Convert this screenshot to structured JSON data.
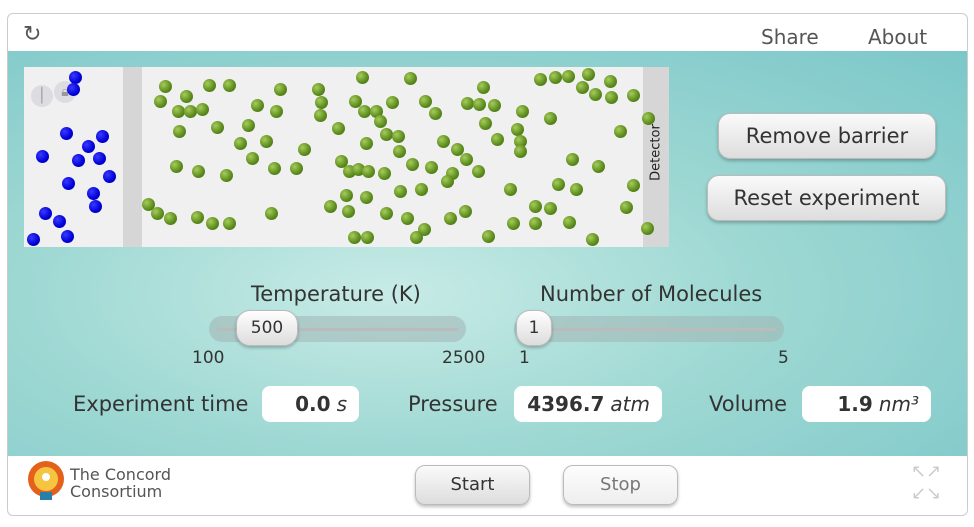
{
  "topbar": {
    "reload_icon": "reload-icon",
    "share": "Share",
    "about": "About"
  },
  "simulation": {
    "detector_label": "Detector",
    "colors": {
      "gas_a": "#0000d8",
      "gas_b": "#5a8a1c"
    }
  },
  "buttons": {
    "remove_barrier": "Remove barrier",
    "reset": "Reset experiment",
    "start": "Start",
    "stop": "Stop"
  },
  "temperature": {
    "label": "Temperature (K)",
    "value": "500",
    "min": "100",
    "max": "2500"
  },
  "molecules": {
    "label": "Number of Molecules",
    "value": "1",
    "min": "1",
    "max": "5"
  },
  "outputs": {
    "time": {
      "label": "Experiment time",
      "value": "0.0",
      "unit": "s"
    },
    "pressure": {
      "label": "Pressure",
      "value": "4396.7",
      "unit": "atm"
    },
    "volume": {
      "label": "Volume",
      "value": "1.9",
      "unit": "nm³"
    }
  },
  "logo": {
    "line1": "The Concord",
    "line2": "Consortium"
  }
}
